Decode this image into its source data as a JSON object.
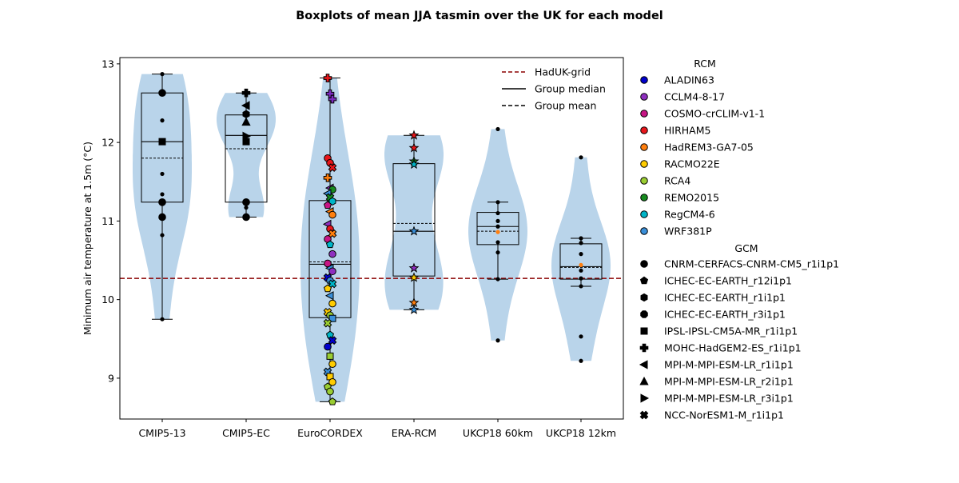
{
  "chart_data": {
    "type": "boxplot",
    "title": "Boxplots of mean JJA tasmin over the UK for each model",
    "xlabel": "",
    "ylabel": "Minimum air temperature at 1.5m (°C)",
    "ylim": [
      8.48,
      13.08
    ],
    "yticks": [
      9,
      10,
      11,
      12,
      13
    ],
    "grid": false,
    "reference_line": {
      "label": "HadUK-grid",
      "value": 10.27,
      "color": "#8b0000"
    },
    "legend_lines": {
      "median": "Group median",
      "mean": "Group mean"
    },
    "categories": [
      "CMIP5-13",
      "CMIP5-EC",
      "EuroCORDEX",
      "ERA-RCM",
      "UKCP18 60km",
      "UKCP18 12km"
    ],
    "groups": [
      {
        "name": "CMIP5-13",
        "q1": 11.24,
        "median": 12.01,
        "q3": 12.63,
        "mean": 11.8,
        "whisker_low": 9.75,
        "whisker_high": 12.87,
        "violin_min": 9.75,
        "violin_max": 12.87,
        "points": [
          {
            "y": 12.87,
            "m": "dot"
          },
          {
            "y": 12.65,
            "m": "dot"
          },
          {
            "y": 12.63,
            "m": "circle"
          },
          {
            "y": 12.28,
            "m": "dot"
          },
          {
            "y": 12.01,
            "m": "square"
          },
          {
            "y": 11.6,
            "m": "dot"
          },
          {
            "y": 11.34,
            "m": "dot"
          },
          {
            "y": 11.24,
            "m": "circle"
          },
          {
            "y": 11.05,
            "m": "circle"
          },
          {
            "y": 10.82,
            "m": "dot"
          },
          {
            "y": 9.75,
            "m": "dot"
          }
        ]
      },
      {
        "name": "CMIP5-EC",
        "q1": 11.24,
        "median": 12.09,
        "q3": 12.35,
        "mean": 11.92,
        "whisker_low": 11.05,
        "whisker_high": 12.63,
        "violin_min": 11.05,
        "violin_max": 12.63,
        "points": [
          {
            "y": 12.63,
            "m": "plus"
          },
          {
            "y": 12.47,
            "m": "tri_left"
          },
          {
            "y": 12.36,
            "m": "hexagon"
          },
          {
            "y": 12.26,
            "m": "tri_up"
          },
          {
            "y": 12.08,
            "m": "tri_right"
          },
          {
            "y": 12.01,
            "m": "square"
          },
          {
            "y": 11.24,
            "m": "circle"
          },
          {
            "y": 11.17,
            "m": "dot"
          },
          {
            "y": 11.05,
            "m": "circle"
          }
        ]
      },
      {
        "name": "EuroCORDEX",
        "q1": 9.77,
        "median": 10.45,
        "q3": 11.26,
        "mean": 10.48,
        "whisker_low": 8.7,
        "whisker_high": 12.82,
        "violin_min": 8.7,
        "violin_max": 12.82,
        "points": [
          {
            "y": 12.82,
            "m": "plus",
            "c": "#e8161b"
          },
          {
            "y": 12.62,
            "m": "plus",
            "c": "#7b2cbf"
          },
          {
            "y": 12.55,
            "m": "plus",
            "c": "#7b2cbf"
          },
          {
            "y": 11.8,
            "m": "circle",
            "c": "#e8161b"
          },
          {
            "y": 11.74,
            "m": "circle",
            "c": "#e8161b"
          },
          {
            "y": 11.68,
            "m": "x",
            "c": "#e8161b"
          },
          {
            "y": 11.55,
            "m": "plus",
            "c": "#ff7f0e"
          },
          {
            "y": 11.42,
            "m": "tri_left",
            "c": "#8e2fbf"
          },
          {
            "y": 11.4,
            "m": "circle",
            "c": "#178a1f"
          },
          {
            "y": 11.35,
            "m": "tri_left",
            "c": "#3a8fd9"
          },
          {
            "y": 11.3,
            "m": "x",
            "c": "#178a1f"
          },
          {
            "y": 11.25,
            "m": "hexagon",
            "c": "#00b5c8"
          },
          {
            "y": 11.2,
            "m": "pentagon",
            "c": "#c71585"
          },
          {
            "y": 11.12,
            "m": "tri_left",
            "c": "#ff7f0e"
          },
          {
            "y": 11.08,
            "m": "circle",
            "c": "#ff7f0e"
          },
          {
            "y": 10.96,
            "m": "tri_left",
            "c": "#8e2fbf"
          },
          {
            "y": 10.9,
            "m": "circle",
            "c": "#e8161b"
          },
          {
            "y": 10.84,
            "m": "x",
            "c": "#ff7f0e"
          },
          {
            "y": 10.77,
            "m": "circle",
            "c": "#c71585"
          },
          {
            "y": 10.7,
            "m": "pentagon",
            "c": "#00b5c8"
          },
          {
            "y": 10.58,
            "m": "circle",
            "c": "#8e2fbf"
          },
          {
            "y": 10.46,
            "m": "circle",
            "c": "#c71585"
          },
          {
            "y": 10.4,
            "m": "tri_left",
            "c": "#3a8fd9"
          },
          {
            "y": 10.36,
            "m": "circle",
            "c": "#8e2fbf"
          },
          {
            "y": 10.28,
            "m": "x",
            "c": "#0000cc"
          },
          {
            "y": 10.24,
            "m": "circle",
            "c": "#3a8fd9"
          },
          {
            "y": 10.2,
            "m": "x",
            "c": "#00b5c8"
          },
          {
            "y": 10.14,
            "m": "pentagon",
            "c": "#ffcc00"
          },
          {
            "y": 10.05,
            "m": "tri_left",
            "c": "#3a8fd9"
          },
          {
            "y": 9.95,
            "m": "circle",
            "c": "#ffcc00"
          },
          {
            "y": 9.84,
            "m": "x",
            "c": "#ffcc00"
          },
          {
            "y": 9.8,
            "m": "circle",
            "c": "#9acd32"
          },
          {
            "y": 9.76,
            "m": "square",
            "c": "#3a8fd9"
          },
          {
            "y": 9.7,
            "m": "x",
            "c": "#9acd32"
          },
          {
            "y": 9.55,
            "m": "pentagon",
            "c": "#00b5c8"
          },
          {
            "y": 9.48,
            "m": "x",
            "c": "#0000cc"
          },
          {
            "y": 9.4,
            "m": "circle",
            "c": "#0000cc"
          },
          {
            "y": 9.28,
            "m": "square",
            "c": "#9acd32"
          },
          {
            "y": 9.18,
            "m": "circle",
            "c": "#ffcc00"
          },
          {
            "y": 9.08,
            "m": "x",
            "c": "#3a8fd9"
          },
          {
            "y": 9.02,
            "m": "square",
            "c": "#ffcc00"
          },
          {
            "y": 8.95,
            "m": "circle",
            "c": "#ffcc00"
          },
          {
            "y": 8.89,
            "m": "pentagon",
            "c": "#9acd32"
          },
          {
            "y": 8.83,
            "m": "circle",
            "c": "#9acd32"
          },
          {
            "y": 8.7,
            "m": "pentagon",
            "c": "#9acd32"
          }
        ]
      },
      {
        "name": "ERA-RCM",
        "q1": 10.3,
        "median": 10.87,
        "q3": 11.73,
        "mean": 10.97,
        "whisker_low": 9.87,
        "whisker_high": 12.09,
        "violin_min": 9.87,
        "violin_max": 12.09,
        "points": [
          {
            "y": 12.09,
            "m": "star",
            "c": "#e8161b"
          },
          {
            "y": 11.93,
            "m": "star",
            "c": "#e8161b"
          },
          {
            "y": 11.76,
            "m": "star",
            "c": "#178a1f"
          },
          {
            "y": 11.72,
            "m": "star",
            "c": "#00b5c8"
          },
          {
            "y": 10.87,
            "m": "star",
            "c": "#3a8fd9"
          },
          {
            "y": 10.4,
            "m": "star",
            "c": "#8e2fbf"
          },
          {
            "y": 10.28,
            "m": "star",
            "c": "#ffcc00"
          },
          {
            "y": 9.96,
            "m": "star",
            "c": "#ff7f0e"
          },
          {
            "y": 9.87,
            "m": "star",
            "c": "#3a8fd9"
          }
        ]
      },
      {
        "name": "UKCP18 60km",
        "q1": 10.7,
        "median": 10.93,
        "q3": 11.11,
        "mean": 10.87,
        "whisker_low": 10.26,
        "whisker_high": 11.24,
        "violin_min": 9.48,
        "violin_max": 12.17,
        "points": [
          {
            "y": 12.17,
            "m": "dot"
          },
          {
            "y": 11.24,
            "m": "dot"
          },
          {
            "y": 11.1,
            "m": "dot"
          },
          {
            "y": 11.0,
            "m": "dot"
          },
          {
            "y": 10.93,
            "m": "dot"
          },
          {
            "y": 10.86,
            "m": "dot",
            "c": "#ff7f0e"
          },
          {
            "y": 10.73,
            "m": "dot"
          },
          {
            "y": 10.6,
            "m": "dot"
          },
          {
            "y": 10.26,
            "m": "dot"
          },
          {
            "y": 9.48,
            "m": "dot"
          }
        ]
      },
      {
        "name": "UKCP18 12km",
        "q1": 10.26,
        "median": 10.42,
        "q3": 10.71,
        "mean": 10.41,
        "whisker_low": 10.17,
        "whisker_high": 10.78,
        "violin_min": 9.22,
        "violin_max": 11.81,
        "points": [
          {
            "y": 11.81,
            "m": "dot"
          },
          {
            "y": 10.78,
            "m": "dot"
          },
          {
            "y": 10.72,
            "m": "dot"
          },
          {
            "y": 10.58,
            "m": "dot"
          },
          {
            "y": 10.44,
            "m": "dot",
            "c": "#ff7f0e"
          },
          {
            "y": 10.37,
            "m": "dot"
          },
          {
            "y": 10.27,
            "m": "dot"
          },
          {
            "y": 10.17,
            "m": "dot"
          },
          {
            "y": 9.53,
            "m": "dot"
          },
          {
            "y": 9.22,
            "m": "dot"
          }
        ]
      }
    ],
    "rcm_legend": {
      "title": "RCM",
      "items": [
        {
          "name": "ALADIN63",
          "color": "#0000cc"
        },
        {
          "name": "CCLM4-8-17",
          "color": "#8e2fbf"
        },
        {
          "name": "COSMO-crCLIM-v1-1",
          "color": "#c71585"
        },
        {
          "name": "HIRHAM5",
          "color": "#e8161b"
        },
        {
          "name": "HadREM3-GA7-05",
          "color": "#ff7f0e"
        },
        {
          "name": "RACMO22E",
          "color": "#ffcc00"
        },
        {
          "name": "RCA4",
          "color": "#9acd32"
        },
        {
          "name": "REMO2015",
          "color": "#178a1f"
        },
        {
          "name": "RegCM4-6",
          "color": "#00b5c8"
        },
        {
          "name": "WRF381P",
          "color": "#3a8fd9"
        }
      ]
    },
    "gcm_legend": {
      "title": "GCM",
      "items": [
        {
          "name": "CNRM-CERFACS-CNRM-CM5_r1i1p1",
          "marker": "circle"
        },
        {
          "name": "ICHEC-EC-EARTH_r12i1p1",
          "marker": "pentagon"
        },
        {
          "name": "ICHEC-EC-EARTH_r1i1p1",
          "marker": "hexagon"
        },
        {
          "name": "ICHEC-EC-EARTH_r3i1p1",
          "marker": "octagon"
        },
        {
          "name": "IPSL-IPSL-CM5A-MR_r1i1p1",
          "marker": "square"
        },
        {
          "name": "MOHC-HadGEM2-ES_r1i1p1",
          "marker": "plus"
        },
        {
          "name": "MPI-M-MPI-ESM-LR_r1i1p1",
          "marker": "tri_left"
        },
        {
          "name": "MPI-M-MPI-ESM-LR_r2i1p1",
          "marker": "tri_up"
        },
        {
          "name": "MPI-M-MPI-ESM-LR_r3i1p1",
          "marker": "tri_right"
        },
        {
          "name": "NCC-NorESM1-M_r1i1p1",
          "marker": "x"
        }
      ]
    },
    "colors": {
      "violin": "#b9d4ea",
      "box_edge": "#000000",
      "reference": "#8b0000"
    }
  }
}
